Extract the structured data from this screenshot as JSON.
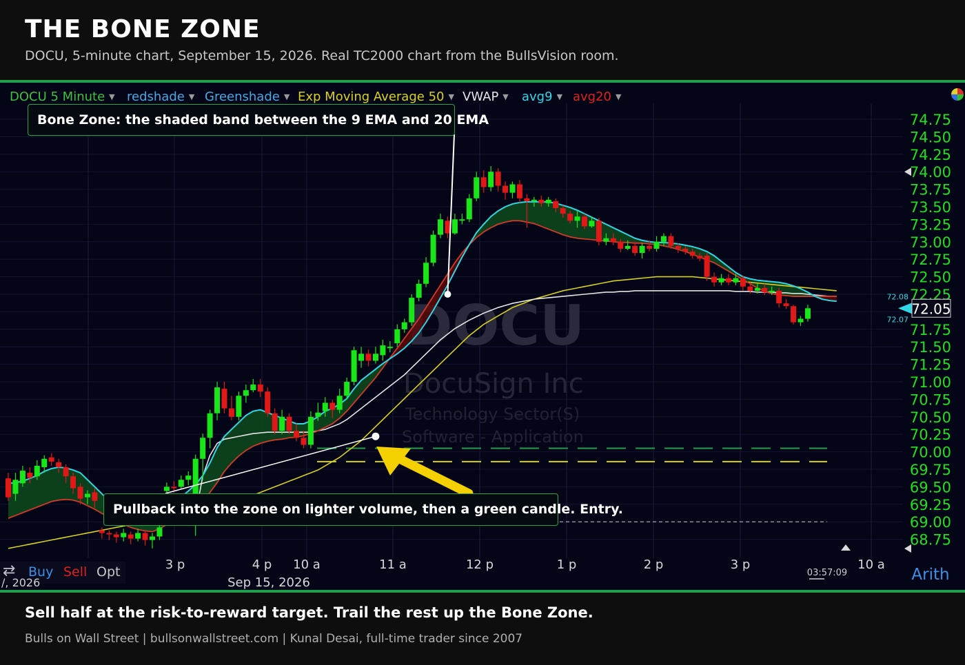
{
  "header": {
    "title": "THE BONE ZONE",
    "subtitle": "DOCU, 5-minute chart, September 15, 2026. Real TC2000 chart from the BullsVision room."
  },
  "toolbar": {
    "symbol": "DOCU 5 Minute",
    "indicators": [
      "redshade",
      "Greenshade",
      "Exp Moving Average 50",
      "VWAP",
      "avg9",
      "avg20"
    ]
  },
  "annotations": {
    "top": "Bone Zone: the shaded band between the 9 EMA and 20 EMA",
    "bottom": "Pullback into the zone on lighter volume, then a green candle. Entry."
  },
  "footer": {
    "takeaway": "Sell half at the risk-to-reward target. Trail the rest up the Bone Zone.",
    "credits": "Bulls on Wall Street  |  bullsonwallstreet.com  |  Kunal Desai, full-time trader since 2007"
  },
  "watermark": {
    "symbol": "DOCU",
    "name": "DocuSign Inc",
    "sector": "Technology Sector(S)",
    "industry": "Software - Application"
  },
  "trade_bar": {
    "buy": "Buy",
    "sell": "Sell",
    "opt": "Opt",
    "date_left": "/, 2026"
  },
  "misc": {
    "clock": "03:57:09",
    "scale": "Arith",
    "price_box": "72.05",
    "bid": "72.08",
    "ask": "72.07"
  },
  "colors": {
    "up_candle": "#19e619",
    "down_candle": "#e01818",
    "ema9": "#2ed8e6",
    "ema20": "#d23a2a",
    "ema50": "#d9d21a",
    "vwap": "#e6e6e6",
    "accent_green": "#1fa04e",
    "arrow": "#f5d000"
  },
  "chart_data": {
    "type": "candlestick",
    "symbol": "DOCU",
    "interval": "5 Minute",
    "date_label": "Sep 15, 2026",
    "y_ticks": [
      "74.75",
      "74.50",
      "74.25",
      "74.00",
      "73.75",
      "73.50",
      "73.25",
      "73.00",
      "72.75",
      "72.50",
      "72.25",
      "72.00",
      "71.75",
      "71.50",
      "71.25",
      "71.00",
      "70.75",
      "70.50",
      "70.25",
      "70.00",
      "69.75",
      "69.50",
      "69.25",
      "69.00",
      "68.75"
    ],
    "x_ticks": [
      "3 p",
      "4 p",
      "10 a",
      "11 a",
      "12 p",
      "1 p",
      "2 p",
      "3 p",
      "10 a"
    ],
    "ylim": [
      68.6,
      74.85
    ],
    "last_price": 72.05,
    "candles": [
      [
        69.62,
        69.35,
        69.7,
        69.3
      ],
      [
        69.4,
        69.6,
        69.7,
        69.3
      ],
      [
        69.55,
        69.73,
        69.8,
        69.5
      ],
      [
        69.7,
        69.63,
        69.78,
        69.55
      ],
      [
        69.65,
        69.8,
        69.88,
        69.6
      ],
      [
        69.78,
        69.9,
        69.95,
        69.7
      ],
      [
        69.92,
        69.86,
        69.98,
        69.8
      ],
      [
        69.85,
        69.78,
        69.9,
        69.7
      ],
      [
        69.78,
        69.65,
        69.82,
        69.55
      ],
      [
        69.65,
        69.48,
        69.7,
        69.4
      ],
      [
        69.5,
        69.33,
        69.55,
        69.25
      ],
      [
        69.35,
        69.4,
        69.45,
        69.25
      ],
      [
        69.42,
        69.3,
        69.48,
        69.2
      ],
      [
        68.88,
        68.84,
        68.92,
        68.76
      ],
      [
        68.84,
        68.82,
        68.88,
        68.74
      ],
      [
        68.82,
        68.78,
        68.86,
        68.7
      ],
      [
        68.78,
        68.84,
        68.9,
        68.72
      ],
      [
        68.82,
        68.76,
        68.86,
        68.68
      ],
      [
        68.76,
        68.84,
        68.9,
        68.72
      ],
      [
        68.84,
        68.74,
        68.86,
        68.66
      ],
      [
        68.74,
        68.79,
        68.84,
        68.62
      ],
      [
        68.79,
        68.92,
        68.96,
        68.74
      ],
      [
        69.44,
        69.5,
        69.56,
        69.38
      ],
      [
        69.5,
        69.48,
        69.58,
        69.42
      ],
      [
        69.5,
        69.6,
        69.66,
        69.46
      ],
      [
        69.6,
        69.66,
        69.72,
        69.52
      ],
      [
        69.3,
        69.9,
        69.96,
        68.8
      ],
      [
        69.9,
        70.2,
        70.26,
        69.6
      ],
      [
        70.2,
        70.55,
        70.6,
        70.05
      ],
      [
        70.55,
        70.92,
        71.0,
        70.45
      ],
      [
        70.9,
        70.62,
        71.0,
        70.55
      ],
      [
        70.62,
        70.5,
        70.8,
        70.45
      ],
      [
        70.5,
        70.8,
        70.86,
        70.45
      ],
      [
        70.8,
        70.88,
        70.96,
        70.7
      ],
      [
        70.88,
        70.96,
        71.04,
        70.85
      ],
      [
        70.96,
        70.86,
        71.04,
        70.78
      ],
      [
        70.86,
        70.55,
        70.92,
        70.5
      ],
      [
        70.55,
        70.3,
        70.62,
        70.25
      ],
      [
        70.3,
        70.5,
        70.6,
        70.25
      ],
      [
        70.5,
        70.3,
        70.55,
        70.25
      ],
      [
        70.3,
        70.2,
        70.4,
        70.15
      ],
      [
        70.2,
        70.1,
        70.3,
        70.05
      ],
      [
        70.1,
        70.5,
        70.58,
        70.05
      ],
      [
        70.5,
        70.56,
        70.7,
        70.44
      ],
      [
        70.58,
        70.7,
        70.78,
        70.5
      ],
      [
        70.7,
        70.6,
        70.74,
        70.48
      ],
      [
        70.6,
        70.8,
        70.9,
        70.55
      ],
      [
        70.8,
        71.0,
        71.06,
        70.75
      ],
      [
        71.0,
        71.45,
        71.5,
        70.95
      ],
      [
        71.3,
        71.4,
        71.5,
        71.2
      ],
      [
        71.4,
        71.3,
        71.46,
        71.22
      ],
      [
        71.3,
        71.4,
        71.5,
        71.26
      ],
      [
        71.38,
        71.52,
        71.6,
        71.3
      ],
      [
        71.5,
        71.5,
        71.58,
        71.42
      ],
      [
        71.55,
        71.75,
        71.82,
        71.5
      ],
      [
        71.75,
        71.85,
        71.9,
        71.7
      ],
      [
        71.85,
        72.2,
        72.25,
        71.8
      ],
      [
        72.2,
        72.4,
        72.46,
        72.15
      ],
      [
        72.4,
        72.7,
        72.78,
        72.35
      ],
      [
        72.7,
        73.1,
        73.16,
        72.65
      ],
      [
        73.1,
        73.32,
        73.4,
        73.05
      ],
      [
        73.3,
        73.12,
        73.36,
        73.05
      ],
      [
        73.12,
        73.32,
        73.4,
        73.1
      ],
      [
        73.32,
        73.32,
        73.4,
        73.25
      ],
      [
        73.32,
        73.62,
        73.68,
        73.28
      ],
      [
        73.62,
        73.92,
        74.0,
        73.58
      ],
      [
        73.92,
        73.78,
        74.02,
        73.7
      ],
      [
        73.78,
        74.0,
        74.08,
        73.72
      ],
      [
        74.0,
        73.8,
        74.05,
        73.72
      ],
      [
        73.8,
        73.7,
        73.86,
        73.6
      ],
      [
        73.7,
        73.82,
        73.86,
        73.62
      ],
      [
        73.82,
        73.62,
        73.88,
        73.56
      ],
      [
        73.62,
        73.58,
        73.68,
        73.2
      ],
      [
        73.58,
        73.6,
        73.64,
        73.5
      ],
      [
        73.6,
        73.55,
        73.66,
        73.5
      ],
      [
        73.55,
        73.6,
        73.64,
        73.5
      ],
      [
        73.58,
        73.48,
        73.62,
        73.42
      ],
      [
        73.48,
        73.4,
        73.52,
        73.34
      ],
      [
        73.4,
        73.3,
        73.44,
        73.26
      ],
      [
        73.3,
        73.36,
        73.44,
        73.2
      ],
      [
        73.36,
        73.22,
        73.4,
        73.18
      ],
      [
        73.22,
        73.3,
        73.36,
        73.2
      ],
      [
        73.3,
        73.0,
        73.34,
        72.95
      ],
      [
        73.0,
        73.05,
        73.12,
        72.95
      ],
      [
        73.05,
        73.0,
        73.12,
        72.95
      ],
      [
        73.0,
        72.9,
        73.04,
        72.85
      ],
      [
        72.9,
        72.94,
        73.02,
        72.88
      ],
      [
        72.94,
        72.84,
        73.0,
        72.8
      ],
      [
        72.84,
        72.94,
        72.98,
        72.76
      ],
      [
        72.94,
        72.9,
        73.02,
        72.86
      ],
      [
        72.9,
        73.0,
        73.08,
        72.86
      ],
      [
        73.0,
        73.08,
        73.12,
        72.94
      ],
      [
        73.08,
        72.94,
        73.12,
        72.9
      ],
      [
        72.94,
        72.9,
        72.98,
        72.84
      ],
      [
        72.9,
        72.86,
        72.94,
        72.82
      ],
      [
        72.86,
        72.8,
        72.9,
        72.76
      ],
      [
        72.8,
        72.76,
        72.84,
        72.72
      ],
      [
        72.8,
        72.5,
        72.84,
        72.44
      ],
      [
        72.5,
        72.42,
        72.56,
        72.36
      ],
      [
        72.42,
        72.48,
        72.54,
        72.38
      ],
      [
        72.48,
        72.42,
        72.54,
        72.38
      ],
      [
        72.42,
        72.48,
        72.54,
        72.38
      ],
      [
        72.48,
        72.36,
        72.52,
        72.3
      ],
      [
        72.36,
        72.3,
        72.42,
        72.26
      ],
      [
        72.3,
        72.34,
        72.4,
        72.26
      ],
      [
        72.34,
        72.28,
        72.4,
        72.24
      ],
      [
        72.28,
        72.3,
        72.36,
        72.24
      ],
      [
        72.3,
        72.12,
        72.34,
        72.06
      ],
      [
        72.12,
        72.08,
        72.18,
        72.04
      ],
      [
        72.08,
        71.85,
        72.1,
        71.82
      ],
      [
        71.85,
        71.9,
        71.94,
        71.8
      ],
      [
        71.9,
        72.05,
        72.1,
        71.86
      ]
    ],
    "ema9": [
      69.55,
      69.56,
      69.58,
      69.62,
      69.66,
      69.72,
      69.76,
      69.78,
      69.77,
      69.74,
      69.7,
      69.6,
      69.5,
      69.4,
      69.3,
      69.22,
      69.15,
      69.1,
      69.06,
      69.04,
      69.03,
      69.08,
      69.17,
      69.26,
      69.35,
      69.44,
      69.53,
      69.66,
      69.84,
      70.06,
      70.22,
      70.32,
      70.42,
      70.52,
      70.58,
      70.6,
      70.56,
      70.52,
      70.48,
      70.44,
      70.4,
      70.4,
      70.44,
      70.5,
      70.58,
      70.62,
      70.68,
      70.76,
      70.9,
      71.02,
      71.1,
      71.18,
      71.26,
      71.33,
      71.4,
      71.48,
      71.58,
      71.7,
      71.85,
      72.02,
      72.2,
      72.38,
      72.58,
      72.78,
      72.96,
      73.13,
      73.25,
      73.36,
      73.44,
      73.5,
      73.54,
      73.56,
      73.57,
      73.57,
      73.57,
      73.57,
      73.55,
      73.52,
      73.49,
      73.45,
      73.4,
      73.35,
      73.3,
      73.25,
      73.2,
      73.15,
      73.1,
      73.05,
      73.02,
      73.0,
      72.99,
      72.99,
      72.98,
      72.97,
      72.95,
      72.93,
      72.9,
      72.86,
      72.8,
      72.72,
      72.64,
      72.56,
      72.5,
      72.47,
      72.45,
      72.44,
      72.43,
      72.42,
      72.4,
      72.37,
      72.33,
      72.28,
      72.22,
      72.18,
      72.16,
      72.15
    ],
    "ema20": [
      69.05,
      69.09,
      69.13,
      69.17,
      69.21,
      69.25,
      69.29,
      69.31,
      69.32,
      69.31,
      69.28,
      69.23,
      69.18,
      69.12,
      69.06,
      69.0,
      68.96,
      68.92,
      68.89,
      68.87,
      68.86,
      68.9,
      68.96,
      69.02,
      69.08,
      69.14,
      69.2,
      69.3,
      69.42,
      69.56,
      69.72,
      69.84,
      69.94,
      70.02,
      70.08,
      70.12,
      70.15,
      70.17,
      70.18,
      70.2,
      70.21,
      70.23,
      70.26,
      70.3,
      70.35,
      70.4,
      70.48,
      70.58,
      70.7,
      70.82,
      70.94,
      71.06,
      71.2,
      71.34,
      71.48,
      71.62,
      71.76,
      71.9,
      72.06,
      72.22,
      72.38,
      72.54,
      72.7,
      72.84,
      72.96,
      73.06,
      73.14,
      73.2,
      73.25,
      73.28,
      73.3,
      73.3,
      73.28,
      73.26,
      73.22,
      73.18,
      73.14,
      73.1,
      73.07,
      73.05,
      73.04,
      73.03,
      73.02,
      73.01,
      73.0,
      72.99,
      72.99,
      72.98,
      72.98,
      72.97,
      72.96,
      72.94,
      72.92,
      72.89,
      72.86,
      72.82,
      72.78,
      72.74,
      72.7,
      72.64,
      72.58,
      72.52,
      72.46,
      72.4,
      72.34,
      72.29,
      72.26,
      72.24,
      72.23,
      72.22,
      72.22,
      72.22,
      72.22,
      72.22,
      72.22,
      72.22
    ],
    "ema50": [
      68.62,
      68.64,
      68.66,
      68.68,
      68.7,
      68.72,
      68.74,
      68.76,
      68.78,
      68.8,
      68.82,
      68.84,
      68.86,
      68.88,
      68.9,
      68.92,
      68.94,
      68.96,
      68.98,
      69.0,
      69.02,
      69.04,
      69.06,
      69.08,
      69.1,
      69.12,
      69.14,
      69.16,
      69.18,
      69.2,
      69.22,
      69.26,
      69.3,
      69.34,
      69.38,
      69.42,
      69.46,
      69.5,
      69.54,
      69.58,
      69.62,
      69.66,
      69.7,
      69.74,
      69.8,
      69.86,
      69.92,
      70.0,
      70.08,
      70.16,
      70.26,
      70.36,
      70.46,
      70.56,
      70.66,
      70.76,
      70.86,
      70.96,
      71.06,
      71.16,
      71.26,
      71.36,
      71.46,
      71.56,
      71.66,
      71.74,
      71.82,
      71.88,
      71.94,
      72.0,
      72.06,
      72.1,
      72.14,
      72.18,
      72.21,
      72.24,
      72.27,
      72.3,
      72.32,
      72.34,
      72.36,
      72.38,
      72.4,
      72.42,
      72.44,
      72.45,
      72.46,
      72.47,
      72.48,
      72.49,
      72.5,
      72.5,
      72.5,
      72.5,
      72.5,
      72.5,
      72.49,
      72.48,
      72.47,
      72.46,
      72.45,
      72.44,
      72.43,
      72.42,
      72.41,
      72.4,
      72.39,
      72.38,
      72.37,
      72.36,
      72.35,
      72.34,
      72.33,
      72.32,
      72.31,
      72.3
    ],
    "vwap": [
      null,
      null,
      null,
      null,
      null,
      null,
      null,
      null,
      null,
      null,
      null,
      null,
      null,
      null,
      null,
      null,
      null,
      null,
      null,
      null,
      null,
      null,
      null,
      null,
      null,
      null,
      69.1,
      69.65,
      69.95,
      70.12,
      70.18,
      70.2,
      70.22,
      70.24,
      70.26,
      70.27,
      70.28,
      70.28,
      70.28,
      70.28,
      70.28,
      70.28,
      70.28,
      70.3,
      70.32,
      70.36,
      70.4,
      70.46,
      70.54,
      70.62,
      70.7,
      70.78,
      70.86,
      70.94,
      71.02,
      71.1,
      71.2,
      71.3,
      71.4,
      71.5,
      71.6,
      71.68,
      71.76,
      71.82,
      71.88,
      71.93,
      71.98,
      72.02,
      72.06,
      72.09,
      72.12,
      72.14,
      72.16,
      72.18,
      72.19,
      72.2,
      72.21,
      72.22,
      72.23,
      72.24,
      72.25,
      72.26,
      72.27,
      72.28,
      72.28,
      72.29,
      72.29,
      72.3,
      72.3,
      72.3,
      72.3,
      72.3,
      72.3,
      72.3,
      72.3,
      72.3,
      72.3,
      72.3,
      72.3,
      72.3,
      72.3,
      72.29,
      72.29,
      72.29,
      72.28,
      72.28,
      72.28,
      72.27,
      72.27,
      72.26,
      72.26,
      72.25,
      72.24,
      72.23,
      72.22,
      72.22
    ],
    "levels": [
      {
        "price": 70.05,
        "style": "dashed",
        "color": "#1fa04e"
      },
      {
        "price": 69.86,
        "style": "dashed",
        "color": "#d9d21a"
      },
      {
        "price": 69.0,
        "style": "dashed",
        "color": "#b8b8c8"
      }
    ]
  }
}
